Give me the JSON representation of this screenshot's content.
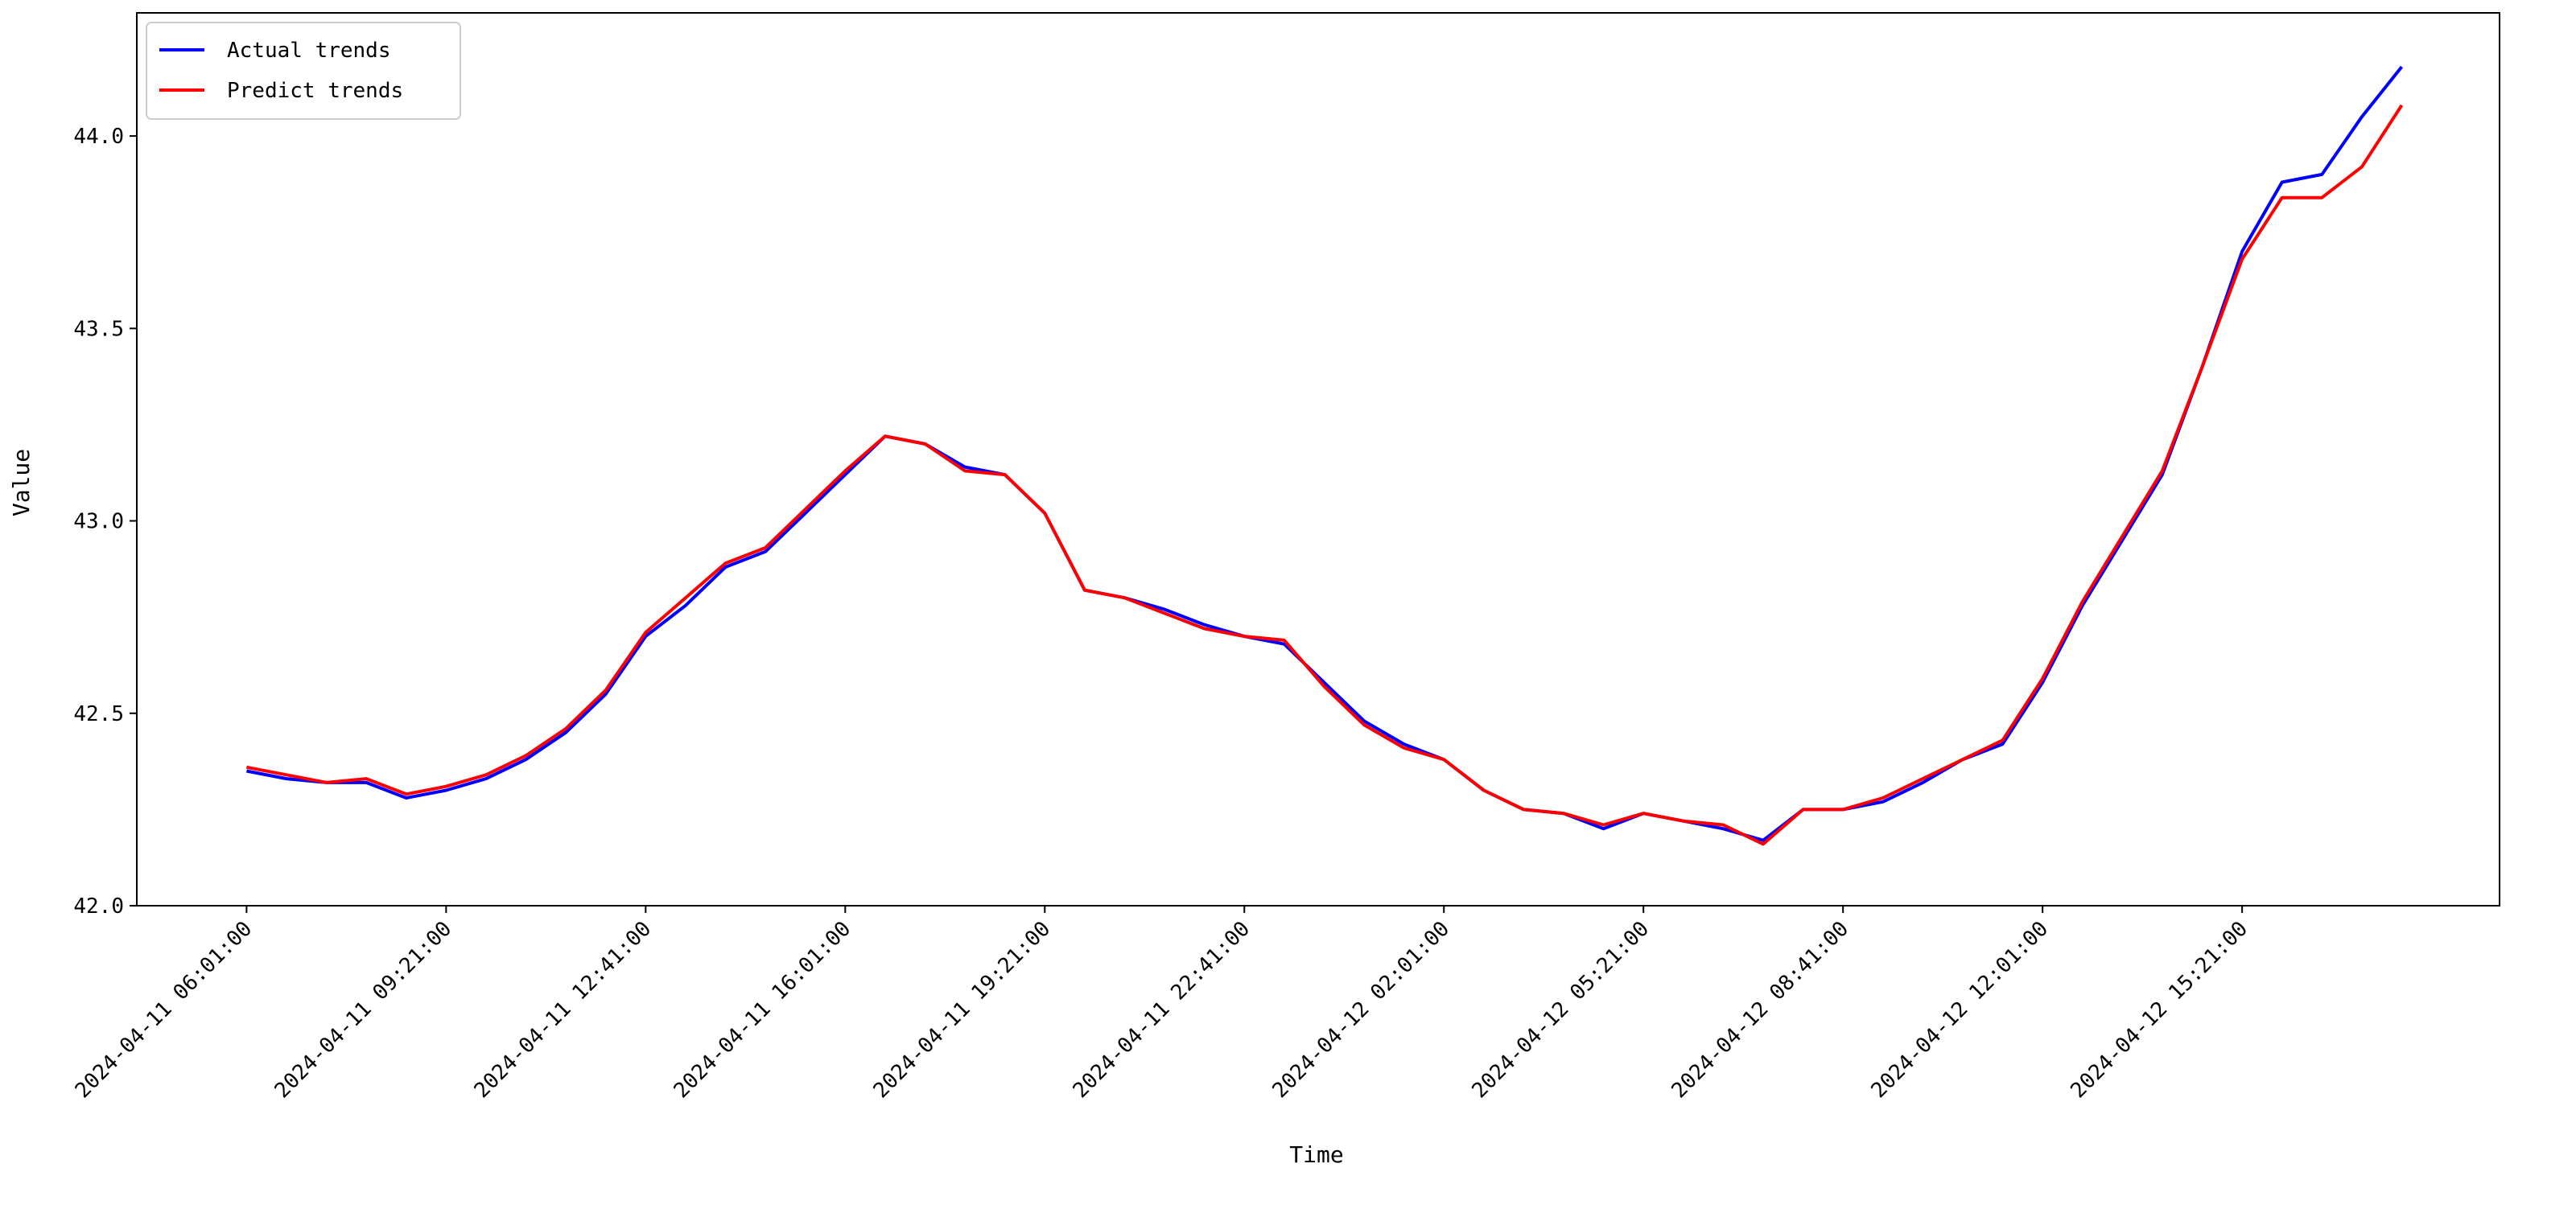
{
  "chart_data": {
    "type": "line",
    "xlabel": "Time",
    "ylabel": "Value",
    "x": [
      "2024-04-11 06:01:00",
      "2024-04-11 06:41:00",
      "2024-04-11 07:21:00",
      "2024-04-11 08:01:00",
      "2024-04-11 08:41:00",
      "2024-04-11 09:21:00",
      "2024-04-11 10:01:00",
      "2024-04-11 10:41:00",
      "2024-04-11 11:21:00",
      "2024-04-11 12:01:00",
      "2024-04-11 12:41:00",
      "2024-04-11 13:21:00",
      "2024-04-11 14:01:00",
      "2024-04-11 14:41:00",
      "2024-04-11 15:21:00",
      "2024-04-11 16:01:00",
      "2024-04-11 16:41:00",
      "2024-04-11 17:21:00",
      "2024-04-11 18:01:00",
      "2024-04-11 18:41:00",
      "2024-04-11 19:21:00",
      "2024-04-11 20:01:00",
      "2024-04-11 20:41:00",
      "2024-04-11 21:21:00",
      "2024-04-11 22:01:00",
      "2024-04-11 22:41:00",
      "2024-04-11 23:21:00",
      "2024-04-12 00:01:00",
      "2024-04-12 00:41:00",
      "2024-04-12 01:21:00",
      "2024-04-12 02:01:00",
      "2024-04-12 02:41:00",
      "2024-04-12 03:21:00",
      "2024-04-12 04:01:00",
      "2024-04-12 04:41:00",
      "2024-04-12 05:21:00",
      "2024-04-12 06:01:00",
      "2024-04-12 06:41:00",
      "2024-04-12 07:21:00",
      "2024-04-12 08:01:00",
      "2024-04-12 08:41:00",
      "2024-04-12 09:21:00",
      "2024-04-12 10:01:00",
      "2024-04-12 10:41:00",
      "2024-04-12 11:21:00",
      "2024-04-12 12:01:00",
      "2024-04-12 12:41:00",
      "2024-04-12 13:21:00",
      "2024-04-12 14:01:00",
      "2024-04-12 14:41:00",
      "2024-04-12 15:21:00",
      "2024-04-12 16:01:00",
      "2024-04-12 16:41:00",
      "2024-04-12 17:21:00",
      "2024-04-12 18:01:00"
    ],
    "series": [
      {
        "name": "Actual trends",
        "color": "#0000ff",
        "values": [
          42.35,
          42.33,
          42.32,
          42.32,
          42.28,
          42.3,
          42.33,
          42.38,
          42.45,
          42.55,
          42.7,
          42.78,
          42.88,
          42.92,
          43.02,
          43.12,
          43.22,
          43.2,
          43.14,
          43.12,
          43.02,
          42.82,
          42.8,
          42.77,
          42.73,
          42.7,
          42.68,
          42.58,
          42.48,
          42.42,
          42.38,
          42.3,
          42.25,
          42.24,
          42.2,
          42.24,
          42.22,
          42.2,
          42.17,
          42.25,
          42.25,
          42.27,
          42.32,
          42.38,
          42.42,
          42.58,
          42.78,
          42.95,
          43.12,
          43.4,
          43.7,
          43.88,
          43.9,
          44.05,
          44.18
        ]
      },
      {
        "name": "Predict trends",
        "color": "#ff0000",
        "values": [
          42.36,
          42.34,
          42.32,
          42.33,
          42.29,
          42.31,
          42.34,
          42.39,
          42.46,
          42.56,
          42.71,
          42.8,
          42.89,
          42.93,
          43.03,
          43.13,
          43.22,
          43.2,
          43.13,
          43.12,
          43.02,
          42.82,
          42.8,
          42.76,
          42.72,
          42.7,
          42.69,
          42.57,
          42.47,
          42.41,
          42.38,
          42.3,
          42.25,
          42.24,
          42.21,
          42.24,
          42.22,
          42.21,
          42.16,
          42.25,
          42.25,
          42.28,
          42.33,
          42.38,
          42.43,
          42.59,
          42.79,
          42.96,
          43.13,
          43.4,
          43.68,
          43.84,
          43.84,
          43.92,
          44.08
        ]
      }
    ],
    "xlim": [
      "2024-04-11 04:11:00",
      "2024-04-12 19:39:00"
    ],
    "xticks": [
      "2024-04-11 06:01:00",
      "2024-04-11 09:21:00",
      "2024-04-11 12:41:00",
      "2024-04-11 16:01:00",
      "2024-04-11 19:21:00",
      "2024-04-11 22:41:00",
      "2024-04-12 02:01:00",
      "2024-04-12 05:21:00",
      "2024-04-12 08:41:00",
      "2024-04-12 12:01:00",
      "2024-04-12 15:21:00"
    ],
    "ylim": [
      42.0,
      44.32
    ],
    "yticks": [
      {
        "value": 42,
        "label": "42.0"
      },
      42.5,
      {
        "value": 43,
        "label": "43.0"
      },
      43.5,
      {
        "value": 44,
        "label": "44.0"
      }
    ],
    "legend": "upper left"
  }
}
